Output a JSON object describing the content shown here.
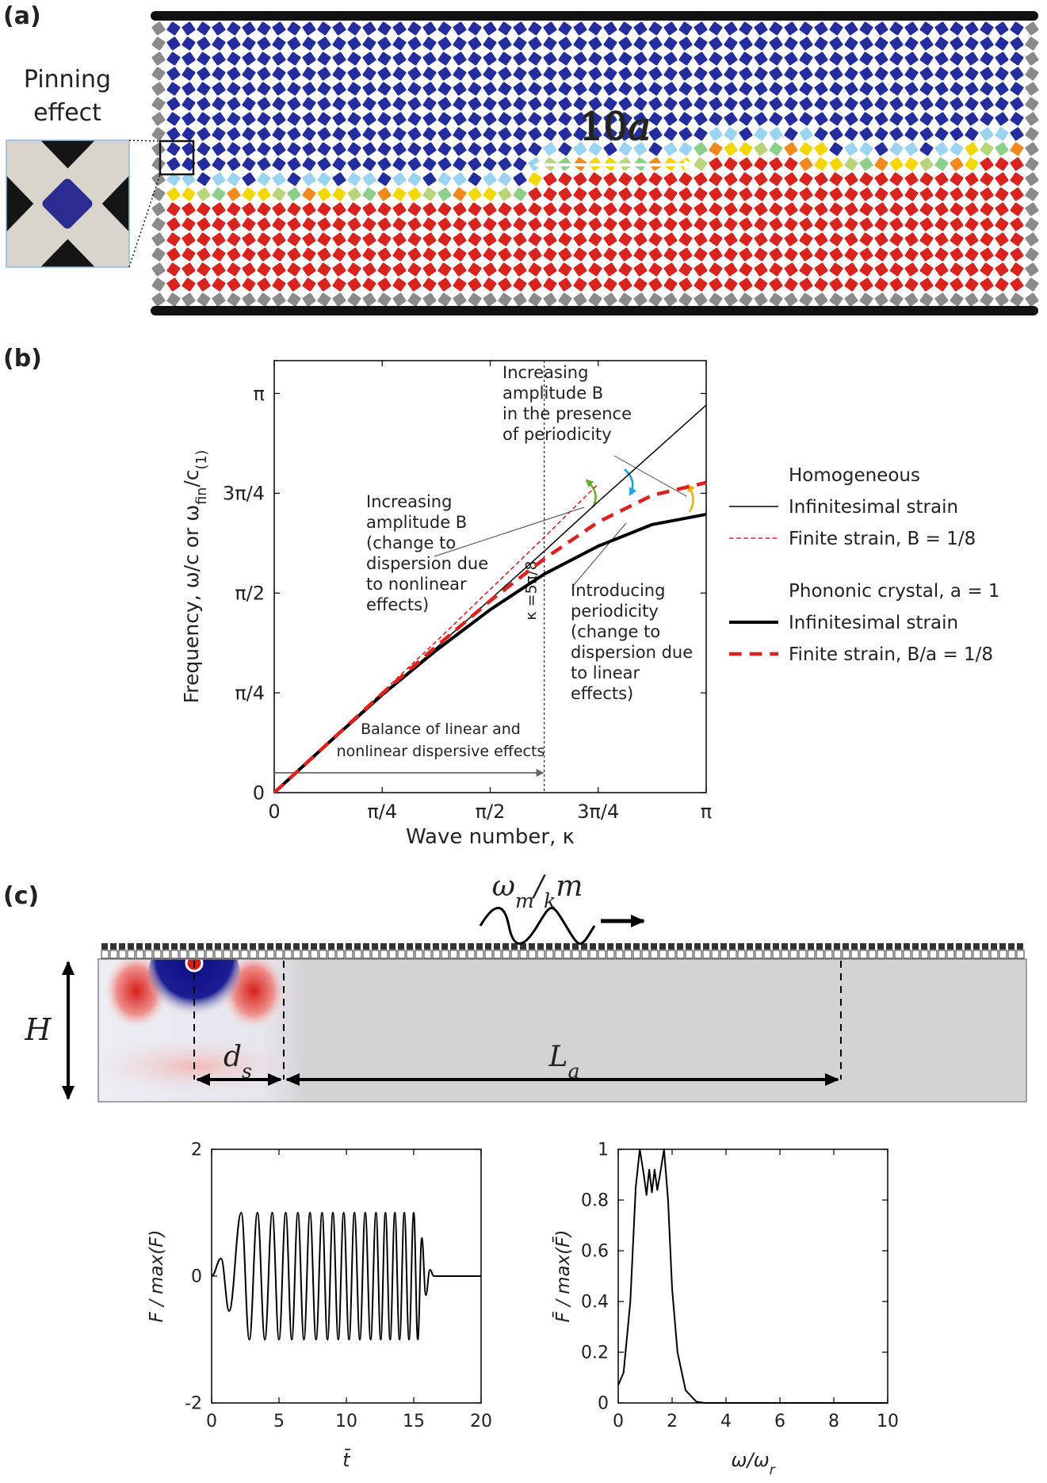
{
  "figure": {
    "panel_labels": [
      "(a)",
      "(b)",
      "(c)"
    ],
    "a": {
      "inset_title": [
        "Pinning",
        "effect"
      ],
      "spacing_label": [
        "10",
        "a"
      ]
    },
    "c": {
      "wave_label": [
        "ω",
        "m",
        "/",
        "k",
        "m"
      ],
      "height_label": "H",
      "ds_label": [
        "d",
        "s"
      ],
      "la_label": [
        "L",
        "a"
      ]
    }
  },
  "chart_data": [
    {
      "type": "line",
      "xlabel": [
        "Wave number, κ"
      ],
      "ylabel": [
        "Frequency, ω/c  or  ω",
        "fin",
        "/c",
        "(1)"
      ],
      "xlim": [
        0,
        3.1416
      ],
      "ylim": [
        0,
        3.4
      ],
      "xticks": [
        0,
        {
          "value": 0.7854,
          "label": "π/4"
        },
        {
          "value": 1.5708,
          "label": "π/2"
        },
        {
          "value": 2.3562,
          "label": "3π/4"
        },
        {
          "value": 3.1416,
          "label": "π"
        }
      ],
      "yticks": [
        0,
        {
          "value": 0.7854,
          "label": "π/4"
        },
        {
          "value": 1.5708,
          "label": "π/2"
        },
        {
          "value": 2.3562,
          "label": "3π/4"
        },
        {
          "value": 3.1416,
          "label": "π"
        }
      ],
      "x": [
        0,
        0.3927,
        0.7854,
        1.1781,
        1.5708,
        1.9635,
        2.3562,
        2.7489,
        3.1416
      ],
      "legend_groups": [
        "Homogeneous",
        "Phononic crystal, a = 1"
      ],
      "series": [
        {
          "name": "Infinitesimal strain",
          "group": 0,
          "color": "#000000",
          "width": 1.5,
          "dash": "solid",
          "values": [
            0,
            0.38,
            0.76,
            1.14,
            1.52,
            1.9,
            2.29,
            2.67,
            3.05
          ]
        },
        {
          "name": "Finite strain, B = 1/8",
          "group": 0,
          "color": "#e0201b",
          "width": 1.6,
          "dash": "dashed",
          "values": [
            0,
            0.39,
            0.79,
            1.19,
            1.6,
            2.01,
            2.43,
            null,
            null
          ]
        },
        {
          "name": "Infinitesimal strain",
          "group": 1,
          "color": "#000000",
          "width": 4,
          "dash": "solid",
          "values": [
            0,
            0.39,
            0.77,
            1.12,
            1.44,
            1.72,
            1.94,
            2.11,
            2.19
          ]
        },
        {
          "name": "Finite strain, B/a = 1/8",
          "group": 1,
          "color": "#e0201b",
          "width": 4.5,
          "dash": "dashed",
          "values": [
            0,
            0.39,
            0.78,
            1.15,
            1.51,
            1.84,
            2.13,
            2.34,
            2.44
          ]
        }
      ],
      "marker": {
        "value": 1.9635,
        "label": "κ =5π/8"
      },
      "annotations": [
        {
          "lines": [
            "Increasing",
            "amplitude B",
            "in the presence",
            "of periodicity"
          ],
          "color": "#e8b007"
        },
        {
          "lines": [
            "Increasing",
            "amplitude B",
            "(change to",
            "dispersion due",
            "to nonlinear",
            "effects)"
          ],
          "color": "#6aaa2a"
        },
        {
          "lines": [
            "Introducing",
            "periodicity",
            "(change to",
            "dispersion due",
            "to linear",
            "effects)"
          ],
          "color": "#1aa3e0"
        }
      ],
      "balance_label": [
        "Balance of linear and",
        "nonlinear dispersive effects"
      ]
    },
    {
      "type": "line",
      "smooth": true,
      "xlabel": [
        "t̄"
      ],
      "ylabel": [
        "F / max(F)"
      ],
      "xlim": [
        0,
        20
      ],
      "ylim": [
        -2,
        2
      ],
      "xticks": [
        0,
        5,
        10,
        15,
        20
      ],
      "yticks": [
        -2,
        0,
        2
      ],
      "color": "#000000",
      "x": [
        0,
        0.7,
        1.3,
        2.2,
        2.8,
        3.4,
        3.95,
        4.5,
        5.0,
        5.5,
        5.95,
        6.4,
        6.85,
        7.3,
        7.75,
        8.2,
        8.6,
        9.0,
        9.4,
        9.8,
        10.2,
        10.6,
        11.0,
        11.4,
        11.8,
        12.2,
        12.55,
        12.9,
        13.25,
        13.6,
        13.95,
        14.3,
        14.65,
        15.0,
        15.3,
        15.6,
        15.9,
        16.2,
        16.5,
        20
      ],
      "values": [
        0,
        0.28,
        -0.55,
        1,
        -1,
        1,
        -1,
        1,
        -1,
        1,
        -1,
        1,
        -1,
        1,
        -1,
        1,
        -1,
        1,
        -1,
        1,
        -1,
        1,
        -1,
        1,
        -1,
        1,
        -1,
        1,
        -1,
        1,
        -1,
        1,
        -1,
        1,
        -1,
        0.6,
        -0.3,
        0.1,
        0,
        0
      ]
    },
    {
      "type": "line",
      "smooth": false,
      "xlabel": [
        "ω/ω",
        "r"
      ],
      "ylabel": [
        "F̄ / max(F̄)"
      ],
      "xlim": [
        0,
        10
      ],
      "ylim": [
        0,
        1
      ],
      "xticks": [
        0,
        2,
        4,
        6,
        8,
        10
      ],
      "yticks": [
        0,
        0.2,
        0.4,
        0.6,
        0.8,
        1
      ],
      "color": "#000000",
      "x": [
        0,
        0.2,
        0.45,
        0.65,
        0.8,
        0.95,
        1.05,
        1.15,
        1.25,
        1.35,
        1.45,
        1.55,
        1.7,
        1.85,
        2.0,
        2.2,
        2.5,
        2.9,
        3.2,
        10
      ],
      "values": [
        0.07,
        0.12,
        0.4,
        0.85,
        1,
        0.9,
        0.82,
        0.92,
        0.83,
        0.92,
        0.84,
        0.9,
        1,
        0.8,
        0.45,
        0.2,
        0.05,
        0.005,
        0,
        0
      ]
    }
  ]
}
